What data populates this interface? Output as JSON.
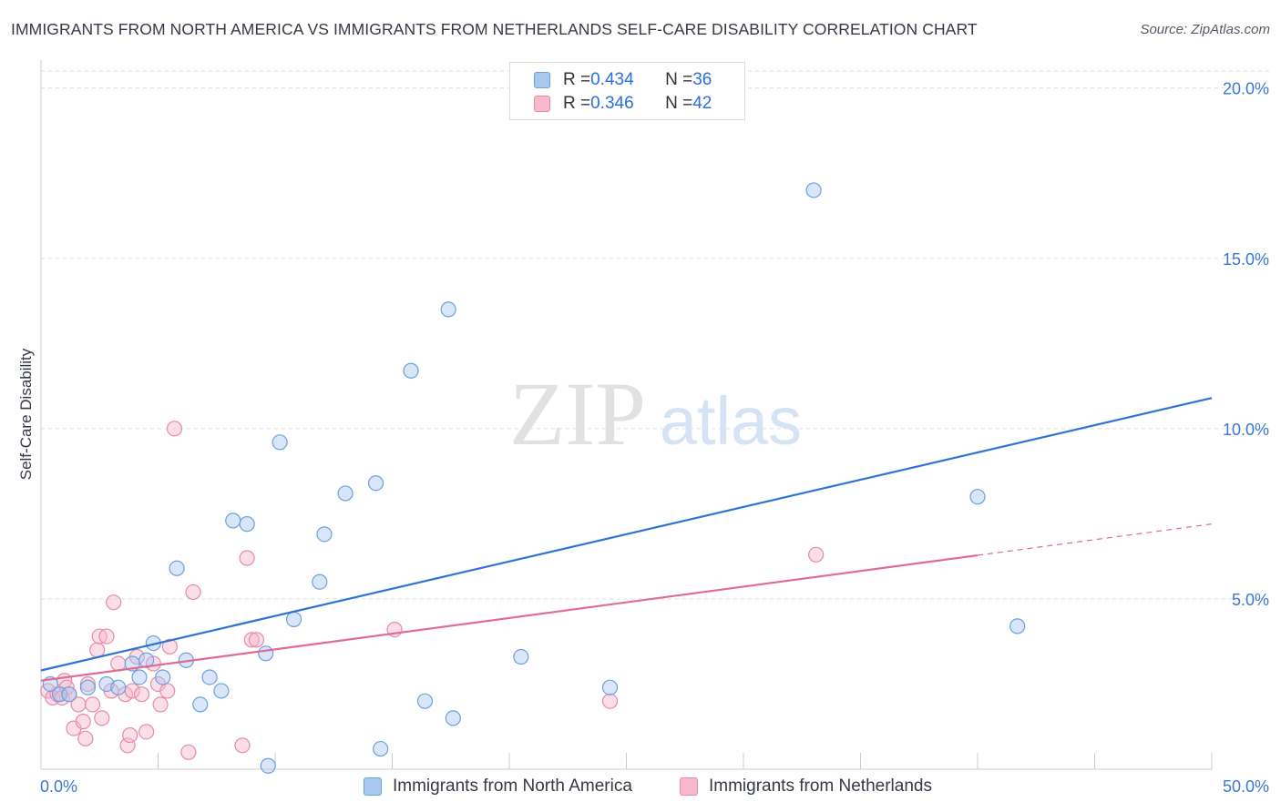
{
  "title": "IMMIGRANTS FROM NORTH AMERICA VS IMMIGRANTS FROM NETHERLANDS SELF-CARE DISABILITY CORRELATION CHART",
  "source": "Source: ZipAtlas.com",
  "watermark": {
    "zip": "ZIP",
    "atlas": "atlas"
  },
  "legend": {
    "rows": [
      {
        "r_label": "R = ",
        "r_value": "0.434",
        "n_label": "N = ",
        "n_value": "36",
        "color": "#a9c8f0",
        "border": "#6e9fe0"
      },
      {
        "r_label": "R = ",
        "r_value": "0.346",
        "n_label": "N = ",
        "n_value": "42",
        "color": "#f7b9cd",
        "border": "#e88aa8"
      }
    ]
  },
  "bottom_legend": {
    "items": [
      {
        "label": "Immigrants from North America",
        "color": "#a9c8f0",
        "border": "#6e9fe0"
      },
      {
        "label": "Immigrants from Netherlands",
        "color": "#f7b9cd",
        "border": "#e88aa8"
      }
    ]
  },
  "chart_data": {
    "type": "scatter",
    "ylabel": "Self-Care Disability",
    "xlim": [
      0,
      50
    ],
    "ylim": [
      0,
      20.5
    ],
    "x_tick_labels": [
      {
        "value": 0,
        "label": "0.0%"
      },
      {
        "value": 50,
        "label": "50.0%"
      }
    ],
    "y_tick_labels": [
      {
        "value": 5,
        "label": "5.0%"
      },
      {
        "value": 10,
        "label": "10.0%"
      },
      {
        "value": 15,
        "label": "15.0%"
      },
      {
        "value": 20,
        "label": "20.0%"
      }
    ],
    "grid": true,
    "series": [
      {
        "name": "Immigrants from North America",
        "color": "#6e9fe0",
        "fill": "#a9c8f0",
        "line_color": "#2f74d0",
        "trend": {
          "x0": 0,
          "y0": 2.9,
          "x1": 50,
          "y1": 10.9,
          "solid_to": 50
        },
        "points": [
          [
            0.4,
            2.5
          ],
          [
            0.8,
            2.2
          ],
          [
            1.2,
            2.2
          ],
          [
            2.0,
            2.4
          ],
          [
            2.8,
            2.5
          ],
          [
            3.3,
            2.4
          ],
          [
            3.9,
            3.1
          ],
          [
            4.2,
            2.7
          ],
          [
            4.5,
            3.2
          ],
          [
            4.8,
            3.7
          ],
          [
            5.2,
            2.7
          ],
          [
            5.8,
            5.9
          ],
          [
            6.2,
            3.2
          ],
          [
            6.8,
            1.9
          ],
          [
            7.2,
            2.7
          ],
          [
            7.7,
            2.3
          ],
          [
            8.2,
            7.3
          ],
          [
            8.8,
            7.2
          ],
          [
            9.6,
            3.4
          ],
          [
            9.7,
            0.1
          ],
          [
            10.2,
            9.6
          ],
          [
            10.8,
            4.4
          ],
          [
            11.9,
            5.5
          ],
          [
            12.1,
            6.9
          ],
          [
            13.0,
            8.1
          ],
          [
            14.3,
            8.4
          ],
          [
            14.5,
            0.6
          ],
          [
            15.8,
            11.7
          ],
          [
            16.4,
            2.0
          ],
          [
            17.4,
            13.5
          ],
          [
            17.6,
            1.5
          ],
          [
            20.5,
            3.3
          ],
          [
            24.3,
            2.4
          ],
          [
            33.0,
            17.0
          ],
          [
            40.0,
            8.0
          ],
          [
            41.7,
            4.2
          ]
        ]
      },
      {
        "name": "Immigrants from Netherlands",
        "color": "#e88aa8",
        "fill": "#f7b9cd",
        "line_color": "#e06b95",
        "trend": {
          "x0": 0,
          "y0": 2.6,
          "x1": 50,
          "y1": 7.2,
          "solid_to": 40
        },
        "points": [
          [
            0.3,
            2.3
          ],
          [
            0.5,
            2.1
          ],
          [
            0.7,
            2.2
          ],
          [
            0.9,
            2.1
          ],
          [
            1.0,
            2.6
          ],
          [
            1.1,
            2.4
          ],
          [
            1.2,
            2.2
          ],
          [
            1.4,
            1.2
          ],
          [
            1.6,
            1.9
          ],
          [
            1.8,
            1.4
          ],
          [
            1.9,
            0.9
          ],
          [
            2.0,
            2.5
          ],
          [
            2.2,
            1.9
          ],
          [
            2.4,
            3.5
          ],
          [
            2.5,
            3.9
          ],
          [
            2.6,
            1.5
          ],
          [
            2.8,
            3.9
          ],
          [
            3.0,
            2.3
          ],
          [
            3.1,
            4.9
          ],
          [
            3.3,
            3.1
          ],
          [
            3.6,
            2.2
          ],
          [
            3.7,
            0.7
          ],
          [
            3.8,
            1.0
          ],
          [
            3.9,
            2.3
          ],
          [
            4.1,
            3.3
          ],
          [
            4.3,
            2.2
          ],
          [
            4.5,
            1.1
          ],
          [
            4.8,
            3.1
          ],
          [
            5.0,
            2.5
          ],
          [
            5.1,
            1.9
          ],
          [
            5.4,
            2.3
          ],
          [
            5.5,
            3.6
          ],
          [
            5.7,
            10.0
          ],
          [
            6.3,
            0.5
          ],
          [
            6.5,
            5.2
          ],
          [
            8.6,
            0.7
          ],
          [
            8.8,
            6.2
          ],
          [
            9.0,
            3.8
          ],
          [
            9.2,
            3.8
          ],
          [
            15.1,
            4.1
          ],
          [
            24.3,
            2.0
          ],
          [
            33.1,
            6.3
          ]
        ]
      }
    ]
  }
}
